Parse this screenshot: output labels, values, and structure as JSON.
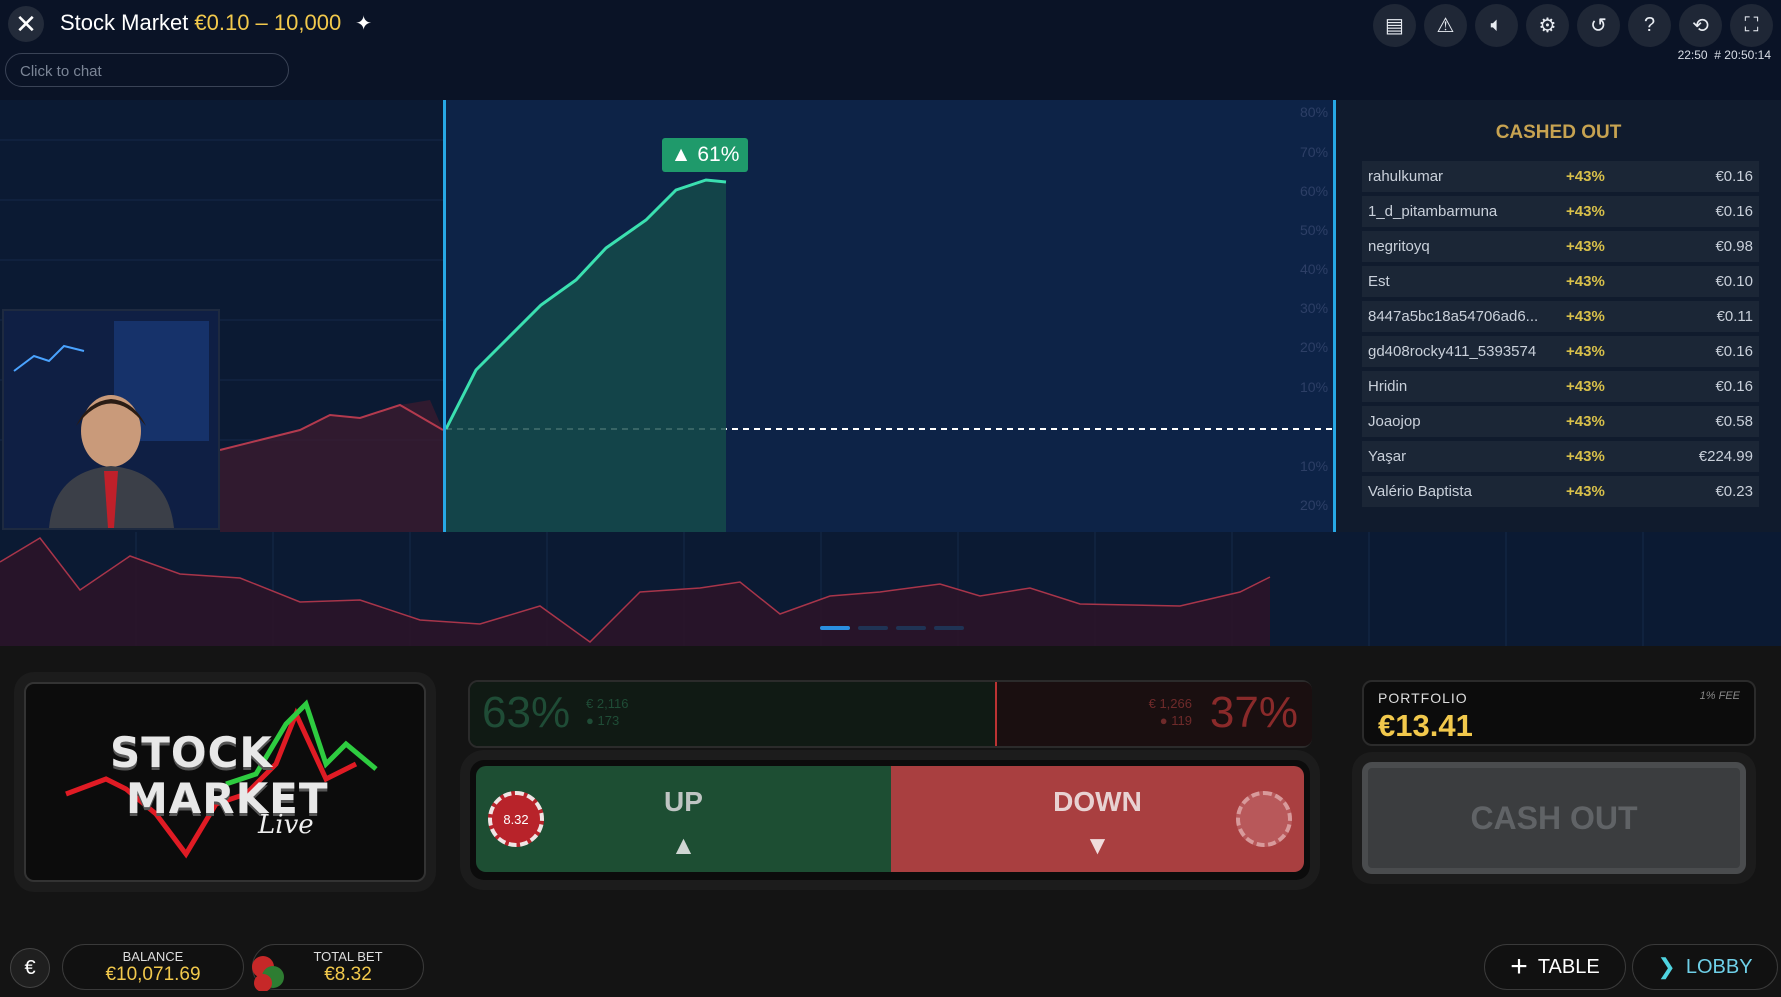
{
  "header": {
    "title": "Stock Market",
    "limits": "€0.10 – 10,000",
    "chat_placeholder": "Click to chat",
    "time": "22:50",
    "round": "# 20:50:14",
    "icons": [
      "chat-icon",
      "alert-icon",
      "volume-icon",
      "settings-icon",
      "history-icon",
      "help-icon",
      "refresh-icon",
      "fullscreen-icon"
    ]
  },
  "chart": {
    "current_change": "61%",
    "axis_labels": [
      "80%",
      "70%",
      "60%",
      "50%",
      "40%",
      "30%",
      "20%",
      "10%",
      "10%",
      "20%"
    ]
  },
  "cashed_out": {
    "title": "CASHED OUT",
    "rows": [
      {
        "name": "rahulkumar",
        "pct": "+43%",
        "amount": "€0.16"
      },
      {
        "name": "1_d_pitambarmuna",
        "pct": "+43%",
        "amount": "€0.16"
      },
      {
        "name": "negritoyq",
        "pct": "+43%",
        "amount": "€0.98"
      },
      {
        "name": "Est",
        "pct": "+43%",
        "amount": "€0.10"
      },
      {
        "name": "8447a5bc18a54706ad6...",
        "pct": "+43%",
        "amount": "€0.11"
      },
      {
        "name": "gd408rocky411_5393574",
        "pct": "+43%",
        "amount": "€0.16"
      },
      {
        "name": "Hridin",
        "pct": "+43%",
        "amount": "€0.16"
      },
      {
        "name": "Joaojop",
        "pct": "+43%",
        "amount": "€0.58"
      },
      {
        "name": "Yaşar",
        "pct": "+43%",
        "amount": "€224.99"
      },
      {
        "name": "Valério Baptista",
        "pct": "+43%",
        "amount": "€0.23"
      }
    ]
  },
  "logo": {
    "line1": "STOCK",
    "line2": "MARKET",
    "line3": "Live"
  },
  "sentiment": {
    "up_pct": "63%",
    "up_amount": "2,116",
    "up_players": "173",
    "down_pct": "37%",
    "down_amount": "1,266",
    "down_players": "119",
    "currency": "€"
  },
  "bet": {
    "up_label": "UP",
    "down_label": "DOWN",
    "chip_value": "8.32"
  },
  "portfolio": {
    "label": "PORTFOLIO",
    "value": "€13.41",
    "fee": "1% FEE"
  },
  "cashout_label": "CASH OUT",
  "footer": {
    "currency_symbol": "€",
    "balance_label": "BALANCE",
    "balance": "€10,071.69",
    "total_bet_label": "TOTAL BET",
    "total_bet": "€8.32",
    "table_label": "TABLE",
    "lobby_label": "LOBBY"
  }
}
